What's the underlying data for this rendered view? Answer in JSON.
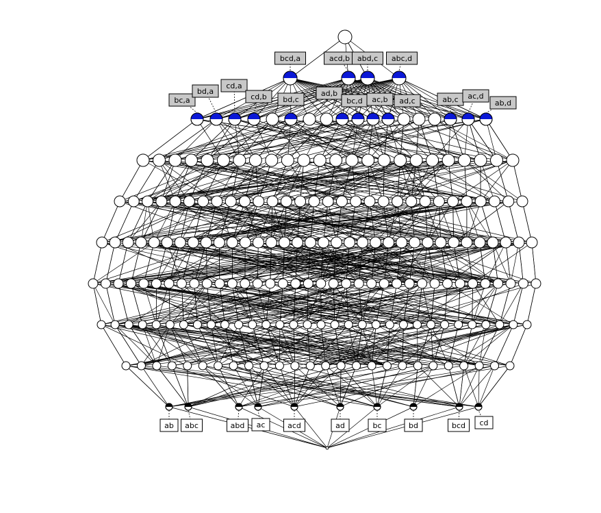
{
  "diagram": {
    "type": "concept-lattice",
    "node_colors": {
      "plain": "#ffffff",
      "labeled_attribute": "#0b18d6",
      "labeled_object": "#000000",
      "attribute_label_fill": "#c8c8c8",
      "object_label_fill": "#ffffff"
    },
    "attribute_labels_level1": [
      "bcd,a",
      "acd,b",
      "abd,c",
      "abc,d"
    ],
    "attribute_labels_level2": [
      "bc,a",
      "bd,a",
      "cd,a",
      "cd,b",
      "bd,c",
      "ad,b",
      "bc,d",
      "ac,b",
      "ad,c",
      "ab,c",
      "ac,d",
      "ab,d"
    ],
    "object_labels": [
      "ab",
      "abc",
      "abd",
      "ac",
      "acd",
      "ad",
      "bc",
      "bd",
      "bcd",
      "cd"
    ]
  }
}
